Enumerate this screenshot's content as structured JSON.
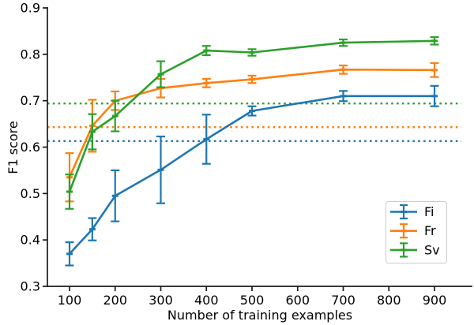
{
  "chart_data": {
    "type": "line",
    "xlabel": "Number of training examples",
    "ylabel": "F1 score",
    "xlim": [
      51,
      981
    ],
    "ylim": [
      0.3,
      0.9
    ],
    "x_ticks": [
      100,
      200,
      300,
      400,
      500,
      600,
      700,
      800,
      900
    ],
    "y_ticks": [
      0.3,
      0.4,
      0.5,
      0.6,
      0.7,
      0.8,
      0.9
    ],
    "grid": false,
    "legend_position": "lower right",
    "legend_labels": [
      "Fi",
      "Fr",
      "Sv"
    ],
    "x": [
      100,
      150,
      200,
      300,
      400,
      500,
      700,
      900
    ],
    "series": [
      {
        "name": "Fi",
        "color": "#1f77b4",
        "values": [
          0.37,
          0.423,
          0.495,
          0.551,
          0.617,
          0.678,
          0.71,
          0.71
        ],
        "errors": [
          0.025,
          0.024,
          0.055,
          0.072,
          0.053,
          0.01,
          0.011,
          0.022
        ],
        "baseline": 0.613
      },
      {
        "name": "Fr",
        "color": "#ff7f0e",
        "values": [
          0.535,
          0.646,
          0.7,
          0.727,
          0.738,
          0.746,
          0.767,
          0.766
        ],
        "errors": [
          0.052,
          0.056,
          0.02,
          0.02,
          0.009,
          0.008,
          0.009,
          0.015
        ],
        "baseline": 0.643
      },
      {
        "name": "Sv",
        "color": "#2ca02c",
        "values": [
          0.504,
          0.633,
          0.667,
          0.757,
          0.808,
          0.804,
          0.825,
          0.829
        ],
        "errors": [
          0.037,
          0.038,
          0.033,
          0.028,
          0.01,
          0.007,
          0.007,
          0.008
        ],
        "baseline": 0.694
      }
    ],
    "baseline_style": "dotted",
    "axis_color": "#1a1a1a"
  }
}
